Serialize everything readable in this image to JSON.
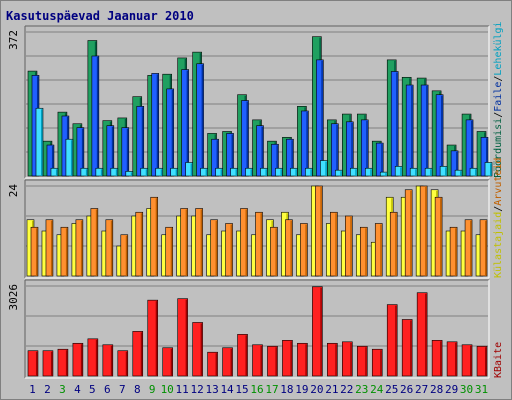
{
  "title": "Kasutuspäevad Jaanuar 2010",
  "colors": {
    "background": "#c0c0c0",
    "title": "#000080",
    "grid": "#808080",
    "weekday_label": "#000080",
    "weekend_label": "#009000",
    "pages_dark": "#006040",
    "pages_light": "#20a060",
    "files_dark": "#0030a0",
    "files_light": "#2060ff",
    "hits_dark": "#00a0c0",
    "hits_light": "#40e0ff",
    "visits_dark": "#c06000",
    "visits_light": "#ff9030",
    "sites_dark": "#c0c000",
    "sites_light": "#ffff40",
    "kbytes_dark": "#a00000",
    "kbytes_light": "#ff2020"
  },
  "chart_data": [
    {
      "type": "bar",
      "panel": "top",
      "ymax_label": "372",
      "ylim": [
        0,
        372
      ],
      "grid": true,
      "legend_right": [
        {
          "text": "Pöördumisi",
          "color": "#006040"
        },
        {
          "text": "/",
          "color": "#000000"
        },
        {
          "text": "Faile",
          "color": "#0030a0"
        },
        {
          "text": "/",
          "color": "#000000"
        },
        {
          "text": "Lehekülgi",
          "color": "#00a0c0"
        }
      ],
      "categories": [
        "1",
        "2",
        "3",
        "4",
        "5",
        "6",
        "7",
        "8",
        "9",
        "10",
        "11",
        "12",
        "13",
        "14",
        "15",
        "16",
        "17",
        "18",
        "19",
        "20",
        "21",
        "22",
        "23",
        "24",
        "25",
        "26",
        "27",
        "28",
        "29",
        "30",
        "31"
      ],
      "series": [
        {
          "name": "Pöördumisi",
          "values": [
            271,
            90,
            165,
            135,
            350,
            143,
            150,
            205,
            260,
            263,
            305,
            320,
            110,
            115,
            210,
            145,
            90,
            100,
            180,
            360,
            145,
            160,
            160,
            90,
            300,
            255,
            253,
            220,
            80,
            160,
            115
          ]
        },
        {
          "name": "Faile",
          "values": [
            260,
            80,
            155,
            125,
            310,
            130,
            125,
            180,
            265,
            225,
            275,
            290,
            95,
            110,
            195,
            130,
            82,
            95,
            168,
            300,
            135,
            140,
            145,
            85,
            270,
            235,
            235,
            210,
            65,
            145,
            100
          ]
        },
        {
          "name": "Lehekülgi",
          "values": [
            175,
            20,
            95,
            20,
            20,
            20,
            12,
            20,
            20,
            20,
            35,
            20,
            20,
            20,
            20,
            20,
            20,
            20,
            20,
            40,
            15,
            20,
            20,
            10,
            25,
            20,
            20,
            25,
            15,
            20,
            35
          ]
        }
      ]
    },
    {
      "type": "bar",
      "panel": "middle",
      "ymax_label": "24",
      "ylim": [
        0,
        24
      ],
      "grid": true,
      "legend_right": [
        {
          "text": "Külastajaid",
          "color": "#c0c000"
        },
        {
          "text": "/",
          "color": "#000000"
        },
        {
          "text": "Arvuteid",
          "color": "#c06000"
        }
      ],
      "categories": [
        "1",
        "2",
        "3",
        "4",
        "5",
        "6",
        "7",
        "8",
        "9",
        "10",
        "11",
        "12",
        "13",
        "14",
        "15",
        "16",
        "17",
        "18",
        "19",
        "20",
        "21",
        "22",
        "23",
        "24",
        "25",
        "26",
        "27",
        "28",
        "29",
        "30",
        "31"
      ],
      "series": [
        {
          "name": "Külastajaid",
          "values": [
            15,
            12,
            11,
            14,
            16,
            12,
            8,
            16,
            18,
            11,
            16,
            16,
            11,
            12,
            12,
            11,
            15,
            17,
            11,
            24,
            14,
            12,
            11,
            9,
            21,
            21,
            24,
            23,
            12,
            12,
            11
          ]
        },
        {
          "name": "Arvuteid",
          "values": [
            13,
            15,
            13,
            15,
            18,
            15,
            11,
            17,
            21,
            13,
            18,
            18,
            15,
            14,
            18,
            17,
            13,
            15,
            14,
            24,
            17,
            16,
            13,
            14,
            17,
            23,
            24,
            21,
            13,
            15,
            15
          ]
        }
      ]
    },
    {
      "type": "bar",
      "panel": "bottom",
      "ymax_label": "3026",
      "ylim": [
        0,
        3026
      ],
      "grid": true,
      "legend_right": [
        {
          "text": "KBaite",
          "color": "#a00000"
        }
      ],
      "categories": [
        "1",
        "2",
        "3",
        "4",
        "5",
        "6",
        "7",
        "8",
        "9",
        "10",
        "11",
        "12",
        "13",
        "14",
        "15",
        "16",
        "17",
        "18",
        "19",
        "20",
        "21",
        "22",
        "23",
        "24",
        "25",
        "26",
        "27",
        "28",
        "29",
        "30",
        "31"
      ],
      "series": [
        {
          "name": "KBaite",
          "values": [
            850,
            850,
            900,
            1100,
            1250,
            1050,
            850,
            1500,
            2550,
            950,
            2600,
            1800,
            800,
            950,
            1400,
            1050,
            1000,
            1200,
            1100,
            3000,
            1100,
            1150,
            1000,
            900,
            2400,
            1900,
            2800,
            1200,
            1150,
            1050,
            1000
          ]
        }
      ]
    }
  ]
}
